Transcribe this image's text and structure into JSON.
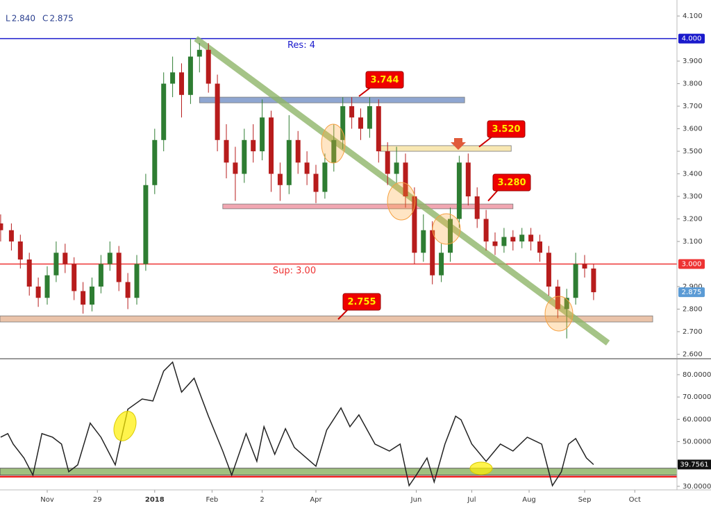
{
  "chart_data": [
    {
      "type": "candlestick",
      "header": [
        {
          "label": "L",
          "value": 2.84,
          "value_label": "2.840"
        },
        {
          "label": "C",
          "value": 2.875,
          "value_label": "2.875"
        }
      ],
      "x": [
        -26,
        -20,
        -15,
        -10,
        -5,
        0,
        5,
        10,
        15,
        20,
        25,
        30,
        35,
        40,
        45,
        50,
        55,
        60,
        65,
        70,
        75,
        80,
        85,
        90,
        95,
        100,
        105,
        110,
        115,
        120,
        125,
        130,
        135,
        140,
        145,
        150,
        155,
        160,
        165,
        170,
        175,
        180,
        185,
        190,
        195,
        200,
        205,
        210,
        215,
        220,
        225,
        230,
        235,
        240,
        245,
        250,
        255,
        260,
        265,
        270,
        275,
        280,
        285,
        290,
        295,
        300,
        305
      ],
      "open": [
        3.18,
        3.15,
        3.1,
        3.02,
        2.9,
        2.85,
        2.95,
        3.05,
        3.0,
        2.88,
        2.82,
        2.9,
        3.0,
        3.05,
        2.92,
        2.85,
        3.0,
        3.35,
        3.55,
        3.8,
        3.85,
        3.75,
        3.92,
        3.95,
        3.8,
        3.55,
        3.45,
        3.4,
        3.55,
        3.5,
        3.65,
        3.4,
        3.35,
        3.55,
        3.45,
        3.4,
        3.32,
        3.45,
        3.55,
        3.7,
        3.65,
        3.6,
        3.7,
        3.5,
        3.4,
        3.45,
        3.3,
        3.05,
        3.15,
        2.95,
        3.05,
        3.2,
        3.45,
        3.3,
        3.2,
        3.1,
        3.08,
        3.12,
        3.1,
        3.13,
        3.1,
        3.05,
        2.9,
        2.8,
        2.85,
        3.0,
        2.98
      ],
      "high": [
        3.22,
        3.18,
        3.13,
        3.05,
        2.94,
        2.99,
        3.1,
        3.09,
        3.03,
        2.92,
        2.94,
        3.04,
        3.1,
        3.08,
        2.96,
        3.04,
        3.4,
        3.6,
        3.85,
        3.92,
        3.89,
        4.0,
        3.98,
        3.98,
        3.84,
        3.62,
        3.52,
        3.6,
        3.62,
        3.73,
        3.68,
        3.45,
        3.66,
        3.59,
        3.5,
        3.44,
        3.49,
        3.62,
        3.74,
        3.74,
        3.69,
        3.74,
        3.73,
        3.54,
        3.52,
        3.49,
        3.34,
        3.22,
        3.19,
        3.09,
        3.25,
        3.48,
        3.49,
        3.34,
        3.24,
        3.14,
        3.16,
        3.15,
        3.16,
        3.16,
        3.13,
        3.08,
        2.93,
        2.89,
        3.05,
        3.04,
        3.0
      ],
      "low": [
        3.1,
        3.06,
        2.98,
        2.86,
        2.81,
        2.82,
        2.92,
        2.96,
        2.84,
        2.78,
        2.79,
        2.87,
        2.97,
        2.88,
        2.8,
        2.82,
        2.97,
        3.31,
        3.5,
        3.74,
        3.65,
        3.71,
        3.85,
        3.76,
        3.5,
        3.38,
        3.28,
        3.36,
        3.45,
        3.46,
        3.32,
        3.28,
        3.31,
        3.4,
        3.35,
        3.27,
        3.29,
        3.41,
        3.51,
        3.6,
        3.55,
        3.56,
        3.45,
        3.35,
        3.36,
        3.25,
        3.0,
        3.01,
        2.91,
        2.92,
        3.01,
        3.16,
        3.26,
        3.16,
        3.06,
        3.04,
        3.05,
        3.06,
        3.07,
        3.06,
        3.01,
        2.86,
        2.76,
        2.67,
        2.82,
        2.94,
        2.84
      ],
      "close": [
        3.15,
        3.1,
        3.02,
        2.9,
        2.85,
        2.95,
        3.05,
        3.0,
        2.88,
        2.82,
        2.9,
        3.0,
        3.05,
        2.92,
        2.85,
        3.0,
        3.35,
        3.55,
        3.8,
        3.85,
        3.75,
        3.92,
        3.95,
        3.8,
        3.55,
        3.45,
        3.4,
        3.55,
        3.5,
        3.65,
        3.4,
        3.35,
        3.55,
        3.45,
        3.4,
        3.32,
        3.45,
        3.55,
        3.7,
        3.65,
        3.6,
        3.7,
        3.5,
        3.4,
        3.45,
        3.3,
        3.05,
        3.15,
        2.95,
        3.05,
        3.2,
        3.45,
        3.3,
        3.2,
        3.1,
        3.08,
        3.12,
        3.1,
        3.13,
        3.1,
        3.05,
        2.9,
        2.8,
        2.85,
        3.0,
        2.98,
        2.875
      ],
      "up_color": "#2e7d32",
      "down_color": "#b71c1c",
      "xlim": [
        -26.36,
        351.55
      ],
      "ylim": [
        2.583,
        4.171
      ],
      "yticks": [
        {
          "value": 2.6,
          "label": "2.600"
        },
        {
          "value": 2.7,
          "label": "2.700"
        },
        {
          "value": 2.8,
          "label": "2.800"
        },
        {
          "value": 2.9,
          "label": "2.900"
        },
        {
          "value": 3.1,
          "label": "3.100"
        },
        {
          "value": 3.2,
          "label": "3.200"
        },
        {
          "value": 3.3,
          "label": "3.300"
        },
        {
          "value": 3.4,
          "label": "3.400"
        },
        {
          "value": 3.5,
          "label": "3.500"
        },
        {
          "value": 3.6,
          "label": "3.600"
        },
        {
          "value": 3.7,
          "label": "3.700"
        },
        {
          "value": 3.8,
          "label": "3.800"
        },
        {
          "value": 3.9,
          "label": "3.900"
        },
        {
          "value": 4.1,
          "label": "4.100"
        }
      ],
      "levels": [
        {
          "label": "Res: 4",
          "value": 4,
          "color": "#1a1acc"
        },
        {
          "label": "Sup: 3.00",
          "value": 3,
          "color": "#ee3333"
        }
      ],
      "zones": [
        {
          "x": [
            85,
            233
          ],
          "range": [
            3.715,
            3.74
          ],
          "color": "#7b96c9"
        },
        {
          "x": [
            186,
            259
          ],
          "range": [
            3.5,
            3.525
          ],
          "color": "#f7e3a4"
        },
        {
          "x": [
            98,
            260
          ],
          "range": [
            3.245,
            3.266
          ],
          "color": "#ef98a4"
        },
        {
          "x": [
            -26.36,
            338
          ],
          "range": [
            2.743,
            2.77
          ],
          "color": "#e6b89a"
        }
      ],
      "trendline": {
        "x": [
          83,
          313
        ],
        "values": [
          4.0,
          2.65
        ],
        "color": "#8fb569"
      },
      "callouts": [
        {
          "value": 3.744,
          "label": "3.744"
        },
        {
          "value": 3.52,
          "label": "3.520"
        },
        {
          "value": 3.28,
          "label": "3.280"
        },
        {
          "value": 2.755,
          "label": "2.755"
        }
      ],
      "price_tags": [
        {
          "value": 4,
          "label": "4.000",
          "color": "#1a1acc"
        },
        {
          "value": 3,
          "label": "3.000",
          "color": "#ee3333"
        },
        {
          "value": 2.875,
          "label": "2.875",
          "color": "#5b9bd5"
        }
      ]
    },
    {
      "type": "line",
      "x": [
        -26,
        -22,
        -19,
        -13,
        -8,
        -3,
        3,
        8,
        12,
        17,
        24,
        30,
        38,
        45,
        53,
        59,
        65,
        70,
        75,
        82,
        90,
        98,
        103,
        111,
        117,
        121,
        127,
        133,
        138,
        150,
        156,
        164,
        169,
        174,
        183,
        191,
        197,
        202,
        206,
        212,
        216,
        222,
        228,
        231,
        237,
        245,
        253,
        260,
        268,
        276,
        282,
        287,
        291,
        295,
        301,
        305
      ],
      "values": [
        52.0,
        53.6,
        48.9,
        42.7,
        35.0,
        53.6,
        52.0,
        48.9,
        36.5,
        39.6,
        58.3,
        52.0,
        39.6,
        64.5,
        69.1,
        68.2,
        81.6,
        85.6,
        72.2,
        78.4,
        61.4,
        45.8,
        35.0,
        53.6,
        41.2,
        56.7,
        44.3,
        55.8,
        47.4,
        39.0,
        55.2,
        65.1,
        56.7,
        62.0,
        48.9,
        45.8,
        48.9,
        30.3,
        35.0,
        42.7,
        31.9,
        48.9,
        61.4,
        59.8,
        48.9,
        41.2,
        48.9,
        45.8,
        52.0,
        48.9,
        30.3,
        36.5,
        48.9,
        51.4,
        42.7,
        39.7561
      ],
      "color": "#222222",
      "xlim": [
        -26.36,
        351.55
      ],
      "ylim": [
        28.4,
        86.2
      ],
      "yticks": [
        {
          "value": 30,
          "label": "30.0000"
        },
        {
          "value": 50,
          "label": "50.0000"
        },
        {
          "value": 60,
          "label": "60.0000"
        },
        {
          "value": 70,
          "label": "70.0000"
        },
        {
          "value": 80,
          "label": "80.0000"
        }
      ],
      "band": {
        "range": [
          35.0,
          38.1
        ],
        "color": "#8fb569"
      },
      "line_level": {
        "value": 34.3,
        "color": "#ee2222"
      },
      "last_tag": {
        "value": 39.7561,
        "label": "39.7561"
      },
      "xticks": [
        {
          "value": 0,
          "label": "Nov"
        },
        {
          "value": 28,
          "label": "29"
        },
        {
          "value": 60,
          "label": "2018"
        },
        {
          "value": 92,
          "label": "Feb"
        },
        {
          "value": 120,
          "label": "2"
        },
        {
          "value": 150,
          "label": "Apr"
        },
        {
          "value": 206,
          "label": "Jun"
        },
        {
          "value": 237,
          "label": "Jul"
        },
        {
          "value": 269,
          "label": "Aug"
        },
        {
          "value": 300,
          "label": "Sep"
        },
        {
          "value": 328,
          "label": "Oct"
        }
      ]
    }
  ]
}
